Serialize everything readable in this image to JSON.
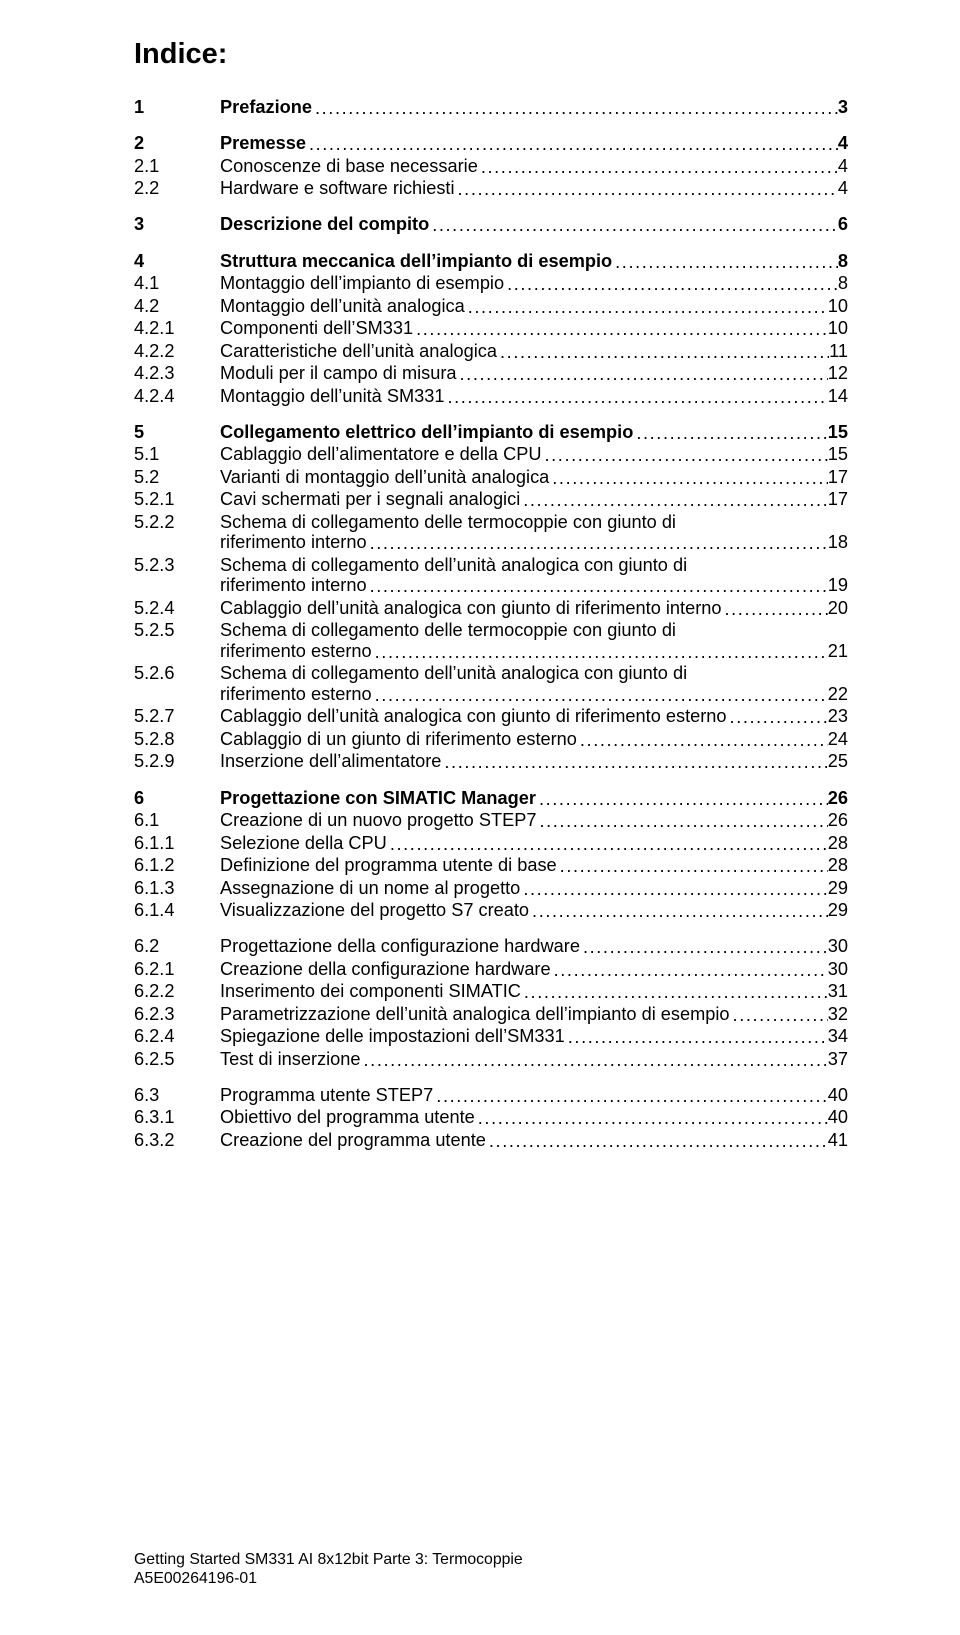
{
  "title": "Indice:",
  "footer_line1": "Getting Started SM331 AI 8x12bit Parte 3: Termocoppie",
  "footer_line2": "A5E00264196-01",
  "toc": [
    {
      "group": [
        {
          "lvl": 1,
          "num": "1",
          "label": "Prefazione",
          "page": "3"
        }
      ]
    },
    {
      "group": [
        {
          "lvl": 1,
          "num": "2",
          "label": "Premesse",
          "page": "4"
        },
        {
          "lvl": 2,
          "num": "2.1",
          "label": "Conoscenze di base necessarie",
          "page": "4"
        },
        {
          "lvl": 2,
          "num": "2.2",
          "label": "Hardware e software richiesti",
          "page": "4"
        }
      ]
    },
    {
      "group": [
        {
          "lvl": 1,
          "num": "3",
          "label": "Descrizione del compito",
          "page": "6"
        }
      ]
    },
    {
      "group": [
        {
          "lvl": 1,
          "num": "4",
          "label": "Struttura meccanica dell’impianto di esempio",
          "page": "8"
        },
        {
          "lvl": 2,
          "num": "4.1",
          "label": "Montaggio dell’impianto di esempio",
          "page": "8"
        },
        {
          "lvl": 2,
          "num": "4.2",
          "label": "Montaggio dell’unità analogica",
          "page": "10"
        },
        {
          "lvl": 3,
          "num": "4.2.1",
          "label": "Componenti dell’SM331",
          "page": "10"
        },
        {
          "lvl": 3,
          "num": "4.2.2",
          "label": "Caratteristiche dell’unità analogica",
          "page": "11"
        },
        {
          "lvl": 3,
          "num": "4.2.3",
          "label": "Moduli per il campo di misura",
          "page": "12"
        },
        {
          "lvl": 3,
          "num": "4.2.4",
          "label": "Montaggio dell’unità SM331",
          "page": "14"
        }
      ]
    },
    {
      "group": [
        {
          "lvl": 1,
          "num": "5",
          "label": "Collegamento elettrico dell’impianto di esempio",
          "page": "15"
        },
        {
          "lvl": 2,
          "num": "5.1",
          "label": "Cablaggio dell’alimentatore e della CPU",
          "page": "15"
        },
        {
          "lvl": 2,
          "num": "5.2",
          "label": "Varianti di montaggio dell’unità analogica",
          "page": "17"
        },
        {
          "lvl": 3,
          "num": "5.2.1",
          "label": "Cavi schermati per i segnali analogici",
          "page": "17"
        },
        {
          "lvl": 3,
          "num": "5.2.2",
          "label": "Schema di collegamento delle termocoppie con giunto di",
          "wrap": true,
          "label2": "riferimento interno",
          "page": "18"
        },
        {
          "lvl": 3,
          "num": "5.2.3",
          "label": "Schema di collegamento dell’unità analogica con giunto di",
          "wrap": true,
          "label2": "riferimento interno",
          "page": "19"
        },
        {
          "lvl": 3,
          "num": "5.2.4",
          "label": "Cablaggio dell’unità analogica con giunto di riferimento interno",
          "page": "20"
        },
        {
          "lvl": 3,
          "num": "5.2.5",
          "label": "Schema di collegamento delle termocoppie con giunto di",
          "wrap": true,
          "label2": "riferimento esterno",
          "page": "21"
        },
        {
          "lvl": 3,
          "num": "5.2.6",
          "label": "Schema di collegamento dell’unità analogica con giunto di",
          "wrap": true,
          "label2": "riferimento esterno",
          "page": "22"
        },
        {
          "lvl": 3,
          "num": "5.2.7",
          "label": "Cablaggio dell’unità analogica con giunto di riferimento esterno",
          "page": "23"
        },
        {
          "lvl": 3,
          "num": "5.2.8",
          "label": "Cablaggio di un giunto di riferimento esterno",
          "page": "24"
        },
        {
          "lvl": 3,
          "num": "5.2.9",
          "label": "Inserzione dell’alimentatore",
          "page": "25"
        }
      ]
    },
    {
      "group": [
        {
          "lvl": 1,
          "num": "6",
          "label": "Progettazione con SIMATIC Manager",
          "page": "26"
        },
        {
          "lvl": 2,
          "num": "6.1",
          "label": "Creazione di un nuovo progetto STEP7",
          "page": "26"
        },
        {
          "lvl": 3,
          "num": "6.1.1",
          "label": "Selezione della CPU",
          "page": "28"
        },
        {
          "lvl": 3,
          "num": "6.1.2",
          "label": "Definizione del programma utente di base",
          "page": "28"
        },
        {
          "lvl": 3,
          "num": "6.1.3",
          "label": "Assegnazione di un nome al progetto",
          "page": "29"
        },
        {
          "lvl": 3,
          "num": "6.1.4",
          "label": "Visualizzazione del progetto S7 creato",
          "page": "29"
        }
      ]
    },
    {
      "group": [
        {
          "lvl": 2,
          "num": "6.2",
          "label": "Progettazione della configurazione hardware",
          "page": "30"
        },
        {
          "lvl": 3,
          "num": "6.2.1",
          "label": "Creazione della configurazione hardware",
          "page": "30"
        },
        {
          "lvl": 3,
          "num": "6.2.2",
          "label": "Inserimento dei componenti SIMATIC",
          "page": "31"
        },
        {
          "lvl": 3,
          "num": "6.2.3",
          "label": "Parametrizzazione dell’unità analogica dell’impianto di esempio",
          "page": "32"
        },
        {
          "lvl": 3,
          "num": "6.2.4",
          "label": "Spiegazione delle impostazioni dell’SM331",
          "page": "34"
        },
        {
          "lvl": 3,
          "num": "6.2.5",
          "label": "Test di inserzione",
          "page": "37"
        }
      ]
    },
    {
      "group": [
        {
          "lvl": 2,
          "num": "6.3",
          "label": "Programma utente STEP7",
          "page": "40"
        },
        {
          "lvl": 3,
          "num": "6.3.1",
          "label": "Obiettivo del programma utente",
          "page": "40"
        },
        {
          "lvl": 3,
          "num": "6.3.2",
          "label": "Creazione del programma utente",
          "page": "41"
        }
      ]
    }
  ]
}
